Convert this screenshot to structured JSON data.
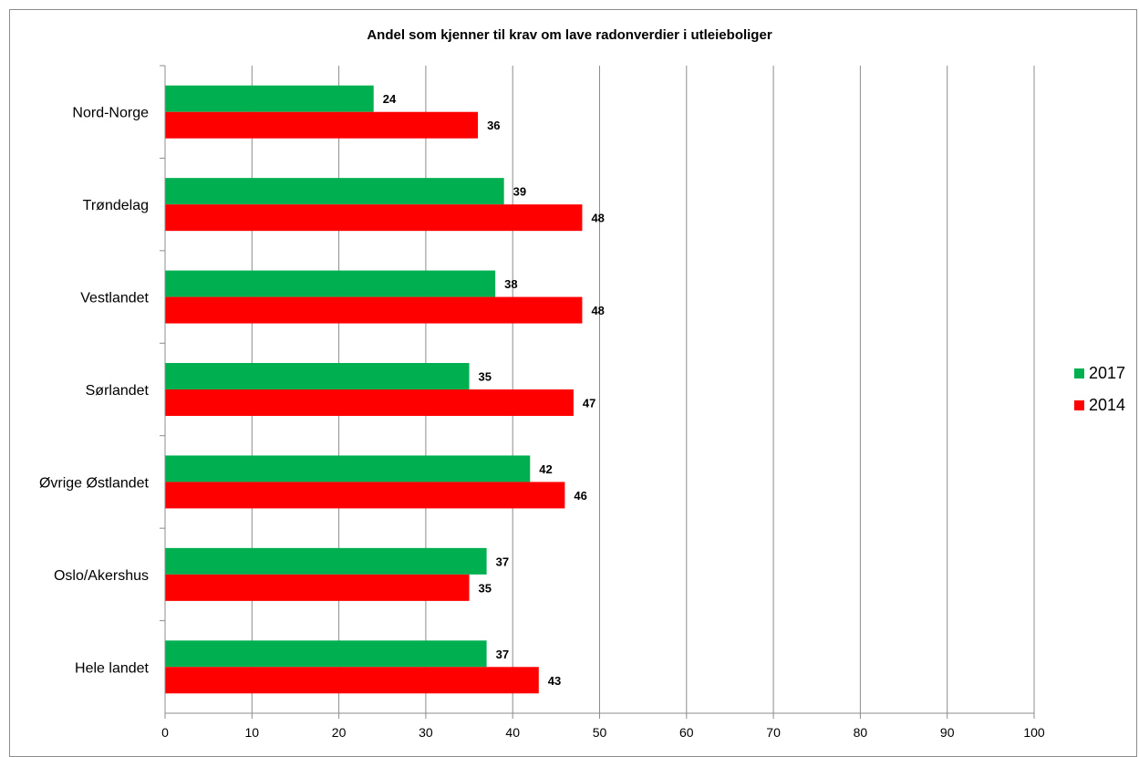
{
  "chart_data": {
    "type": "bar",
    "orientation": "horizontal",
    "title": "Andel som kjenner til krav om lave radonverdier i utleieboliger",
    "categories": [
      "Nord-Norge",
      "Trøndelag",
      "Vestlandet",
      "Sørlandet",
      "Øvrige Østlandet",
      "Oslo/Akershus",
      "Hele landet"
    ],
    "series": [
      {
        "name": "2017",
        "color": "#00b050",
        "values": [
          24,
          39,
          38,
          35,
          42,
          37,
          37
        ]
      },
      {
        "name": "2014",
        "color": "#ff0000",
        "values": [
          36,
          48,
          48,
          47,
          46,
          35,
          43
        ]
      }
    ],
    "xlim": [
      0,
      100
    ],
    "xticks": [
      "0",
      "10",
      "20",
      "30",
      "40",
      "50",
      "60",
      "70",
      "80",
      "90",
      "100"
    ],
    "grid": "vertical",
    "legend_position": "right",
    "data_labels": true
  }
}
